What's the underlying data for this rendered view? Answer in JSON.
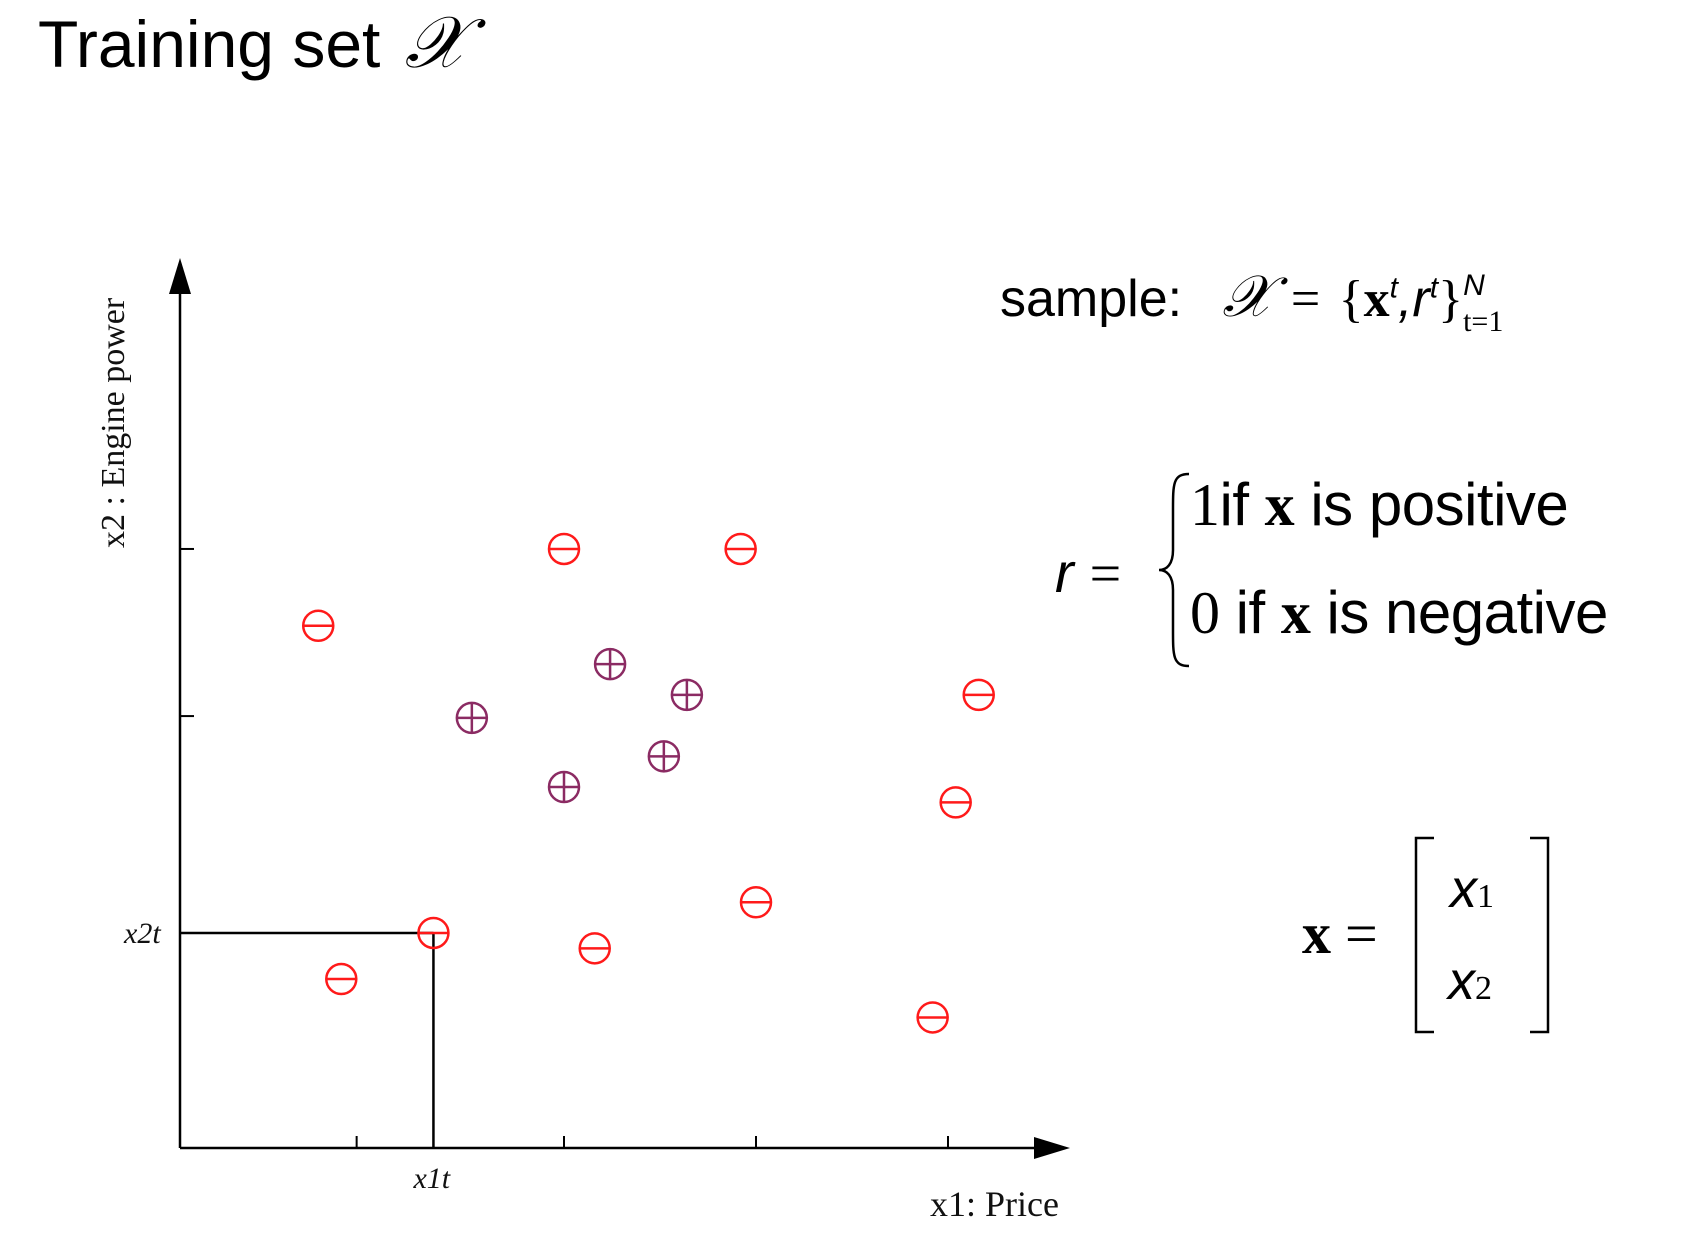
{
  "title": {
    "text": "Training set",
    "symbol": "𝒳"
  },
  "chart_data": {
    "type": "scatter",
    "xlabel": "x1: Price",
    "ylabel": "x2 : Engine power",
    "x_tick_label": "x1t",
    "y_tick_label": "x2t",
    "highlighted_point": {
      "x": 0.33,
      "y": 0.28
    },
    "series": [
      {
        "name": "negative",
        "marker": "circle-minus",
        "color": "#ff1a1a",
        "points": [
          [
            0.18,
            0.68
          ],
          [
            0.5,
            0.78
          ],
          [
            0.73,
            0.78
          ],
          [
            1.04,
            0.59
          ],
          [
            1.01,
            0.45
          ],
          [
            0.75,
            0.32
          ],
          [
            0.54,
            0.26
          ],
          [
            0.21,
            0.22
          ],
          [
            0.33,
            0.28
          ],
          [
            0.98,
            0.17
          ]
        ]
      },
      {
        "name": "positive",
        "marker": "circle-plus",
        "color": "#8b2b63",
        "points": [
          [
            0.56,
            0.63
          ],
          [
            0.38,
            0.56
          ],
          [
            0.66,
            0.59
          ],
          [
            0.63,
            0.51
          ],
          [
            0.5,
            0.47
          ]
        ]
      }
    ],
    "xlim": [
      0,
      1.17
    ],
    "ylim": [
      0,
      1.17
    ]
  },
  "sample": {
    "label": "sample:",
    "set_symbol": "𝒳",
    "equals": "=",
    "open_brace": "{",
    "vec": "x",
    "sup_t": "t",
    "comma": ",",
    "r": "r",
    "close_brace": "}",
    "upper": "N",
    "lower": "t=1"
  },
  "r_def": {
    "lhs": "r",
    "equals": "=",
    "case1": {
      "value": "1",
      "text1": "if ",
      "vec": "x",
      "text2": " is positive"
    },
    "case2": {
      "value": "0",
      "text1": " if ",
      "vec": "x",
      "text2": " is negative"
    }
  },
  "x_vec": {
    "lhs": "x",
    "equals": "=",
    "entry1": {
      "var": "x",
      "sub": "1"
    },
    "entry2": {
      "var": "x",
      "sub": "2"
    }
  }
}
